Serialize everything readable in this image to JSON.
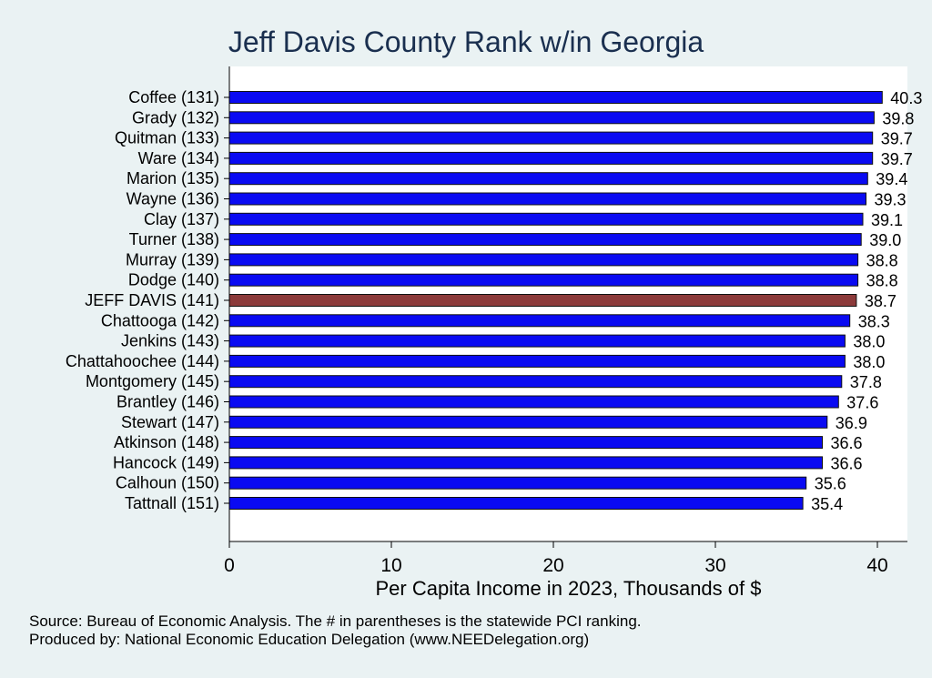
{
  "chart_data": {
    "type": "bar",
    "orientation": "horizontal",
    "title": "Jeff Davis County Rank w/in Georgia",
    "xlabel": "Per Capita Income in 2023, Thousands of $",
    "xlim": [
      0,
      42
    ],
    "xticks": [
      0,
      10,
      20,
      30,
      40
    ],
    "grid": false,
    "categories": [
      "Coffee (131)",
      "Grady (132)",
      "Quitman (133)",
      "Ware (134)",
      "Marion (135)",
      "Wayne (136)",
      "Clay (137)",
      "Turner (138)",
      "Murray (139)",
      "Dodge (140)",
      "JEFF DAVIS (141)",
      "Chattooga (142)",
      "Jenkins (143)",
      "Chattahoochee (144)",
      "Montgomery (145)",
      "Brantley (146)",
      "Stewart (147)",
      "Atkinson (148)",
      "Hancock (149)",
      "Calhoun (150)",
      "Tattnall (151)"
    ],
    "values": [
      40.3,
      39.8,
      39.7,
      39.7,
      39.4,
      39.3,
      39.1,
      39.0,
      38.8,
      38.8,
      38.7,
      38.3,
      38.0,
      38.0,
      37.8,
      37.6,
      36.9,
      36.6,
      36.6,
      35.6,
      35.4
    ],
    "value_labels": [
      "40.3",
      "39.8",
      "39.7",
      "39.7",
      "39.4",
      "39.3",
      "39.1",
      "39.0",
      "38.8",
      "38.8",
      "38.7",
      "38.3",
      "38.0",
      "38.0",
      "37.8",
      "37.6",
      "36.9",
      "36.6",
      "36.6",
      "35.6",
      "35.4"
    ],
    "highlight_index": 10,
    "colors": {
      "bar": "#0a0af2",
      "highlight": "#8c3a3a",
      "plot_bg": "#ffffff",
      "page_bg": "#eaf2f3"
    }
  },
  "footer": {
    "source": "Source: Bureau of Economic Analysis. The # in parentheses is the statewide PCI ranking.",
    "produced_by": "Produced by: National Economic Education Delegation (www.NEEDelegation.org)"
  }
}
